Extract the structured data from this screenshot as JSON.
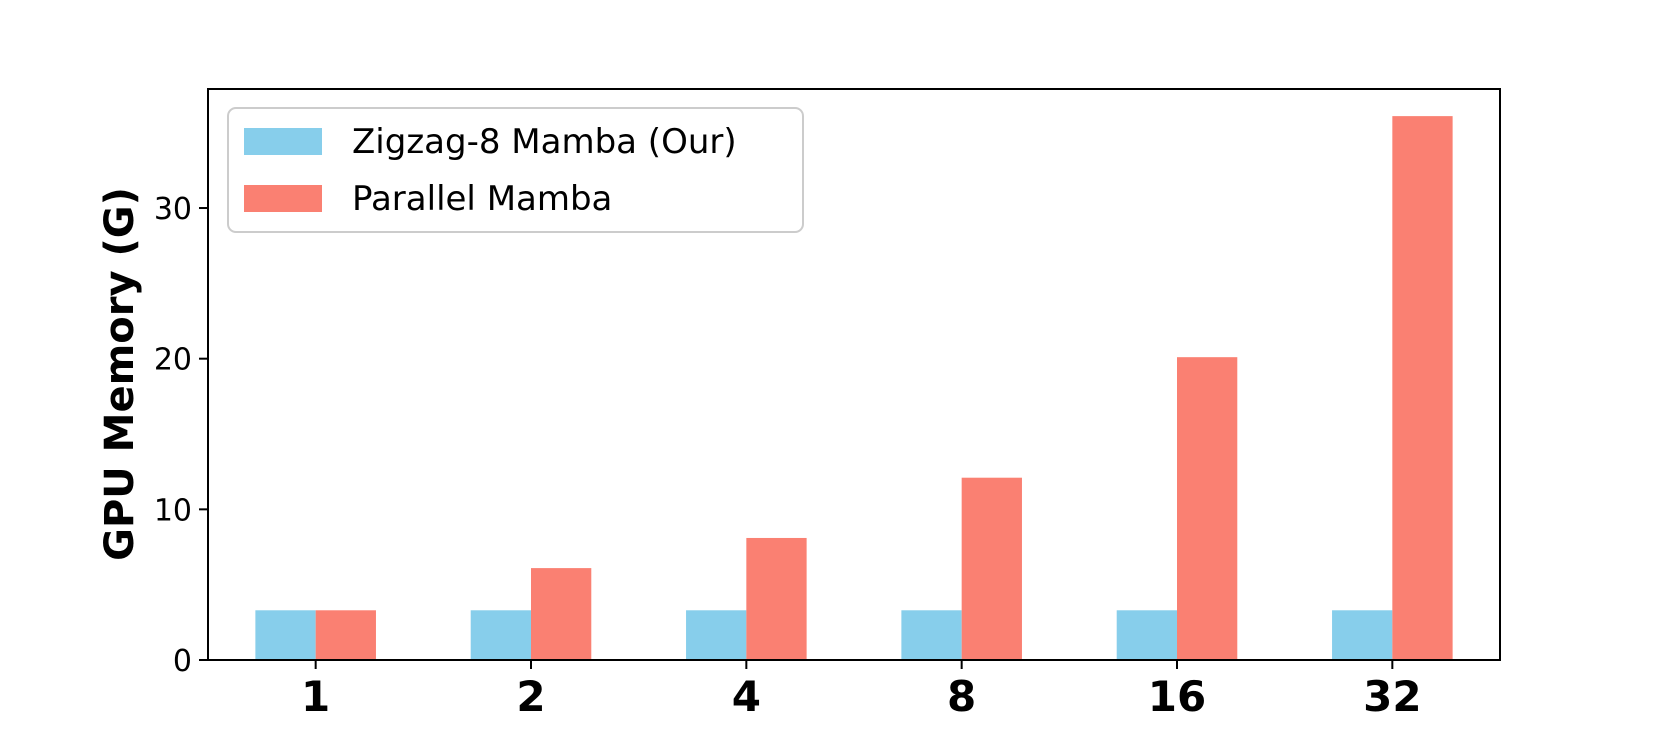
{
  "chart_data": {
    "type": "bar",
    "categories": [
      "1",
      "2",
      "4",
      "8",
      "16",
      "32"
    ],
    "series": [
      {
        "name": "Zigzag-8 Mamba (Our)",
        "values": [
          3.3,
          3.3,
          3.3,
          3.3,
          3.3,
          3.3
        ],
        "color": "#87ceeb"
      },
      {
        "name": "Parallel Mamba",
        "values": [
          3.3,
          6.1,
          8.1,
          12.1,
          20.1,
          36.1
        ],
        "color": "#fa8072"
      }
    ],
    "xlabel": "",
    "ylabel": "GPU Memory (G)",
    "ylim": [
      0,
      37.9
    ],
    "yticks": [
      0,
      10,
      20,
      30
    ],
    "grid": false,
    "legend_position": "top-left"
  }
}
